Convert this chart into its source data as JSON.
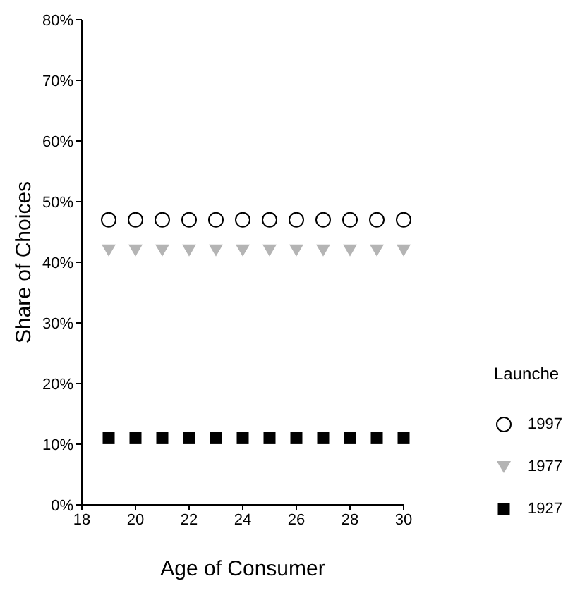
{
  "chart_data": {
    "type": "scatter",
    "xlabel": "Age of Consumer",
    "ylabel": "Share of Choices",
    "legend_title": "Launche",
    "x": [
      19,
      20,
      21,
      22,
      23,
      24,
      25,
      26,
      27,
      28,
      29,
      30
    ],
    "series": [
      {
        "name": "1997",
        "color": "#000000",
        "marker": "circle",
        "values": [
          47,
          47,
          47,
          47,
          47,
          47,
          47,
          47,
          47,
          47,
          47,
          47
        ]
      },
      {
        "name": "1977",
        "color": "#b4b4b4",
        "marker": "triangle",
        "values": [
          42,
          42,
          42,
          42,
          42,
          42,
          42,
          42,
          42,
          42,
          42,
          42
        ]
      },
      {
        "name": "1927",
        "color": "#000000",
        "marker": "square",
        "values": [
          11,
          11,
          11,
          11,
          11,
          11,
          11,
          11,
          11,
          11,
          11,
          11
        ]
      }
    ],
    "xlim": [
      18,
      30
    ],
    "xticks": [
      18,
      20,
      22,
      24,
      26,
      28,
      30
    ],
    "ylim": [
      0,
      80
    ],
    "yticks": [
      {
        "value": 0,
        "label": "0%"
      },
      {
        "value": 10,
        "label": "10%"
      },
      {
        "value": 20,
        "label": "20%"
      },
      {
        "value": 30,
        "label": "30%"
      },
      {
        "value": 40,
        "label": "40%"
      },
      {
        "value": 50,
        "label": "50%"
      },
      {
        "value": 60,
        "label": "60%"
      },
      {
        "value": 70,
        "label": "70%"
      },
      {
        "value": 80,
        "label": "80%"
      }
    ],
    "grid": false,
    "legend": "right"
  }
}
